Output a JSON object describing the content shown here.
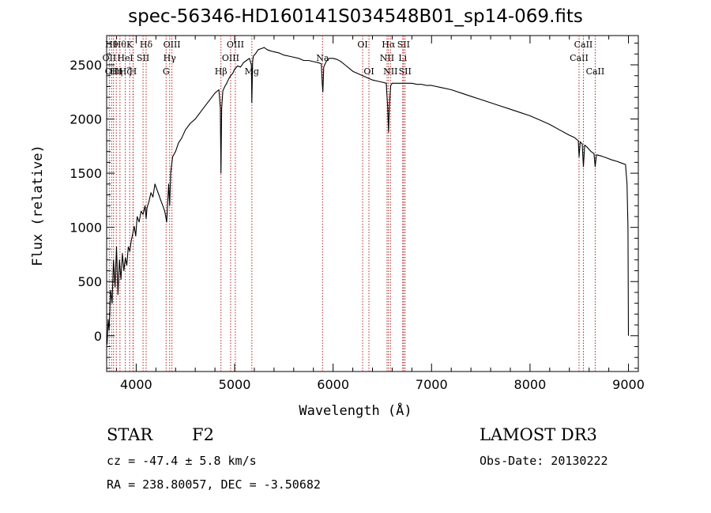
{
  "chart_data": {
    "type": "line",
    "title": "spec-56346-HD160141S034548B01_sp14-069.fits",
    "xlabel": "Wavelength (Å)",
    "ylabel": "Flux (relative)",
    "xlim": [
      3700,
      9100
    ],
    "ylim": [
      -330,
      2770
    ],
    "xticks": [
      4000,
      5000,
      6000,
      7000,
      8000,
      9000
    ],
    "yticks": [
      0,
      500,
      1000,
      1500,
      2000,
      2500
    ],
    "grid": false,
    "legend": "none",
    "line_color": "#000000",
    "marker_color": "#b22222",
    "series": [
      {
        "x": [
          3705,
          3715,
          3725,
          3740,
          3755,
          3770,
          3785,
          3800,
          3815,
          3830,
          3845,
          3860,
          3875,
          3890,
          3905,
          3920,
          3935,
          3950,
          3965,
          3980,
          3995,
          4010,
          4030,
          4050,
          4070,
          4090,
          4101,
          4110,
          4130,
          4150,
          4170,
          4190,
          4210,
          4230,
          4250,
          4270,
          4290,
          4310,
          4330,
          4340,
          4350,
          4370,
          4400,
          4430,
          4460,
          4500,
          4550,
          4600,
          4650,
          4700,
          4750,
          4800,
          4840,
          4855,
          4861,
          4868,
          4880,
          4900,
          4920,
          4940,
          4960,
          4980,
          5000,
          5030,
          5060,
          5090,
          5120,
          5150,
          5170,
          5175,
          5183,
          5190,
          5210,
          5240,
          5270,
          5300,
          5330,
          5360,
          5400,
          5450,
          5500,
          5550,
          5600,
          5650,
          5700,
          5750,
          5800,
          5850,
          5880,
          5890,
          5896,
          5905,
          5930,
          5960,
          6000,
          6040,
          6080,
          6120,
          6160,
          6200,
          6250,
          6300,
          6350,
          6400,
          6450,
          6500,
          6540,
          6555,
          6563,
          6572,
          6585,
          6600,
          6650,
          6700,
          6750,
          6800,
          6850,
          6900,
          6950,
          7000,
          7100,
          7200,
          7300,
          7400,
          7500,
          7600,
          7700,
          7800,
          7900,
          8000,
          8100,
          8200,
          8300,
          8400,
          8450,
          8490,
          8498,
          8510,
          8530,
          8542,
          8555,
          8580,
          8620,
          8650,
          8662,
          8675,
          8720,
          8780,
          8840,
          8880,
          8940,
          8970,
          8985,
          8995,
          9000
        ],
        "y": [
          -80,
          150,
          50,
          420,
          300,
          700,
          450,
          820,
          380,
          700,
          520,
          760,
          600,
          720,
          650,
          820,
          780,
          880,
          940,
          1010,
          920,
          1100,
          1050,
          1150,
          1120,
          1200,
          1080,
          1180,
          1240,
          1320,
          1280,
          1400,
          1350,
          1300,
          1250,
          1200,
          1150,
          1050,
          1400,
          1200,
          1500,
          1650,
          1700,
          1780,
          1820,
          1900,
          1960,
          2000,
          2060,
          2120,
          2180,
          2240,
          2270,
          2100,
          1500,
          2100,
          2260,
          2300,
          2330,
          2370,
          2400,
          2420,
          2460,
          2490,
          2480,
          2520,
          2540,
          2560,
          2500,
          2150,
          2530,
          2580,
          2600,
          2640,
          2650,
          2660,
          2640,
          2630,
          2620,
          2610,
          2590,
          2580,
          2570,
          2560,
          2540,
          2540,
          2530,
          2520,
          2510,
          2330,
          2250,
          2480,
          2530,
          2560,
          2560,
          2550,
          2530,
          2500,
          2470,
          2440,
          2420,
          2400,
          2380,
          2360,
          2350,
          2340,
          2330,
          2100,
          1880,
          2130,
          2310,
          2330,
          2330,
          2330,
          2330,
          2330,
          2320,
          2320,
          2310,
          2310,
          2290,
          2270,
          2240,
          2210,
          2180,
          2150,
          2120,
          2090,
          2060,
          2030,
          1990,
          1950,
          1900,
          1850,
          1830,
          1800,
          1650,
          1790,
          1770,
          1560,
          1760,
          1740,
          1700,
          1680,
          1560,
          1670,
          1660,
          1640,
          1620,
          1610,
          1590,
          1580,
          1400,
          1000,
          0
        ]
      }
    ],
    "line_markers": [
      {
        "x": 3727,
        "rows": [
          "",
          "OII",
          ""
        ]
      },
      {
        "x": 3750,
        "rows": [
          "Hθ",
          "",
          ""
        ]
      },
      {
        "x": 3770,
        "rows": [
          "",
          "",
          "OIII"
        ]
      },
      {
        "x": 3798,
        "rows": [
          "",
          "",
          "Hη"
        ]
      },
      {
        "x": 3835,
        "rows": [
          "Hθ",
          "",
          ""
        ]
      },
      {
        "x": 3889,
        "rows": [
          "",
          "HeI",
          "Hζ"
        ]
      },
      {
        "x": 3934,
        "rows": [
          "K",
          "",
          ""
        ]
      },
      {
        "x": 3968,
        "rows": [
          "",
          "",
          "H"
        ]
      },
      {
        "x": 3970,
        "rows": [
          "",
          "",
          ""
        ]
      },
      {
        "x": 4070,
        "rows": [
          "",
          "SII",
          ""
        ]
      },
      {
        "x": 4101,
        "rows": [
          "Hδ",
          "",
          ""
        ]
      },
      {
        "x": 4304,
        "rows": [
          "",
          "",
          "G"
        ]
      },
      {
        "x": 4340,
        "rows": [
          "",
          "Hγ",
          ""
        ]
      },
      {
        "x": 4363,
        "rows": [
          "OIII",
          "",
          ""
        ]
      },
      {
        "x": 4861,
        "rows": [
          "",
          "",
          "Hβ"
        ]
      },
      {
        "x": 4959,
        "rows": [
          "",
          "OIII",
          ""
        ]
      },
      {
        "x": 5007,
        "rows": [
          "OIII",
          "",
          ""
        ]
      },
      {
        "x": 5175,
        "rows": [
          "",
          "",
          "Mg"
        ]
      },
      {
        "x": 5893,
        "rows": [
          "",
          "Na",
          ""
        ]
      },
      {
        "x": 6300,
        "rows": [
          "OI",
          "",
          ""
        ]
      },
      {
        "x": 6364,
        "rows": [
          "",
          "",
          "OI"
        ]
      },
      {
        "x": 6548,
        "rows": [
          "",
          "NII",
          ""
        ]
      },
      {
        "x": 6563,
        "rows": [
          "Hα",
          "",
          ""
        ]
      },
      {
        "x": 6583,
        "rows": [
          "",
          "",
          "NII"
        ]
      },
      {
        "x": 6707,
        "rows": [
          "",
          "Li",
          ""
        ]
      },
      {
        "x": 6716,
        "rows": [
          "SII",
          "",
          ""
        ]
      },
      {
        "x": 6731,
        "rows": [
          "",
          "",
          "SII"
        ]
      },
      {
        "x": 8498,
        "rows": [
          "",
          "CaII",
          ""
        ]
      },
      {
        "x": 8542,
        "rows": [
          "CaII",
          "",
          ""
        ]
      },
      {
        "x": 8662,
        "rows": [
          "",
          "",
          "CaII"
        ]
      }
    ]
  },
  "info": {
    "object_type": "STAR",
    "spectral_type": "F2",
    "survey": "LAMOST DR3",
    "cz": "cz = -47.4 ± 5.8 km/s",
    "obs_date": "Obs-Date: 20130222",
    "radec": "RA = 238.80057, DEC =  -3.50682"
  }
}
